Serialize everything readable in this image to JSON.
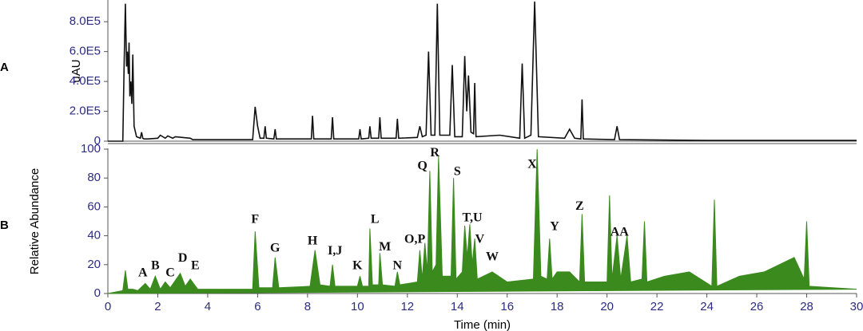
{
  "chart_data": [
    {
      "type": "line",
      "panel_label": "A",
      "y_label": "uAU",
      "color": "#111111",
      "xlim": [
        0,
        30
      ],
      "ylim": [
        0,
        940000
      ],
      "yticks": [
        0,
        {
          "value": 200000,
          "label": "2.0E5"
        },
        {
          "value": 400000,
          "label": "4.0E5"
        },
        {
          "value": 600000,
          "label": "6.0E5"
        },
        {
          "value": 800000,
          "label": "8.0E5"
        }
      ],
      "x": [
        0,
        0.6,
        0.65,
        0.7,
        0.75,
        0.78,
        0.82,
        0.85,
        0.88,
        0.92,
        0.96,
        1.0,
        1.05,
        1.15,
        1.3,
        1.35,
        1.4,
        1.45,
        1.6,
        2.0,
        2.1,
        2.3,
        2.4,
        2.6,
        2.7,
        3.3,
        3.4,
        5.8,
        5.9,
        6.0,
        6.1,
        6.25,
        6.3,
        6.35,
        6.65,
        6.7,
        6.75,
        8.15,
        8.2,
        8.25,
        8.95,
        9.0,
        9.05,
        10.05,
        10.1,
        10.15,
        10.45,
        10.5,
        10.55,
        10.85,
        10.9,
        10.95,
        11.55,
        11.6,
        11.65,
        12.4,
        12.5,
        12.6,
        12.75,
        12.85,
        12.95,
        13.1,
        13.2,
        13.3,
        13.7,
        13.8,
        13.9,
        14.2,
        14.3,
        14.38,
        14.45,
        14.55,
        14.65,
        14.7,
        14.75,
        15.7,
        16.5,
        16.6,
        16.7,
        16.95,
        17.1,
        17.25,
        18.3,
        18.5,
        18.7,
        18.95,
        19.0,
        19.05,
        20.3,
        20.4,
        20.5,
        24.0,
        30.0
      ],
      "values": [
        0,
        0,
        500000,
        920000,
        500000,
        600000,
        450000,
        660000,
        300000,
        400000,
        250000,
        580000,
        100000,
        30000,
        20000,
        60000,
        20000,
        15000,
        15000,
        20000,
        40000,
        20000,
        35000,
        20000,
        30000,
        20000,
        10000,
        10000,
        230000,
        100000,
        20000,
        20000,
        100000,
        20000,
        15000,
        80000,
        15000,
        15000,
        170000,
        15000,
        15000,
        160000,
        15000,
        15000,
        80000,
        15000,
        20000,
        100000,
        20000,
        20000,
        160000,
        20000,
        20000,
        150000,
        20000,
        25000,
        100000,
        30000,
        40000,
        600000,
        40000,
        40000,
        920000,
        40000,
        40000,
        510000,
        30000,
        30000,
        570000,
        200000,
        440000,
        60000,
        50000,
        390000,
        30000,
        40000,
        20000,
        520000,
        20000,
        40000,
        935000,
        30000,
        20000,
        80000,
        20000,
        15000,
        280000,
        15000,
        10000,
        100000,
        10000,
        5000,
        5000
      ]
    },
    {
      "type": "area",
      "panel_label": "B",
      "y_label": "Relative Abundance",
      "x_label": "Time (min)",
      "color": "#3b8a1e",
      "xlim": [
        0,
        30
      ],
      "ylim": [
        0,
        100
      ],
      "xticks": [
        0,
        2,
        4,
        6,
        8,
        10,
        12,
        14,
        16,
        18,
        20,
        22,
        24,
        26,
        28,
        30
      ],
      "yticks": [
        0,
        20,
        40,
        60,
        80,
        100
      ],
      "x": [
        0,
        0.6,
        0.7,
        0.8,
        1.0,
        1.2,
        1.5,
        1.7,
        1.9,
        2.1,
        2.3,
        2.5,
        2.9,
        3.1,
        3.3,
        3.6,
        5.8,
        5.9,
        6.05,
        6.6,
        6.7,
        6.85,
        8.1,
        8.3,
        8.5,
        8.9,
        9.0,
        9.1,
        10.0,
        10.1,
        10.2,
        10.45,
        10.5,
        10.6,
        10.85,
        10.9,
        11.0,
        11.5,
        11.6,
        11.7,
        12.4,
        12.5,
        12.6,
        12.7,
        12.8,
        12.9,
        13.0,
        13.15,
        13.25,
        13.4,
        13.75,
        13.85,
        13.95,
        14.2,
        14.3,
        14.4,
        14.5,
        14.6,
        14.7,
        14.8,
        15.4,
        16.0,
        17.05,
        17.2,
        17.35,
        17.6,
        17.7,
        17.8,
        18.0,
        18.5,
        18.9,
        19.0,
        19.1,
        20.0,
        20.1,
        20.2,
        20.4,
        20.55,
        20.8,
        20.95,
        21.4,
        21.5,
        21.6,
        22.3,
        23.3,
        24.2,
        24.3,
        24.4,
        25.3,
        26.3,
        27.5,
        27.9,
        28.0,
        28.1,
        30.0
      ],
      "values": [
        0,
        2,
        16,
        3,
        3,
        2,
        7,
        3,
        12,
        3,
        8,
        4,
        14,
        5,
        10,
        3,
        3,
        43,
        4,
        4,
        25,
        4,
        5,
        30,
        6,
        5,
        20,
        5,
        5,
        12,
        5,
        5,
        45,
        6,
        6,
        28,
        6,
        5,
        15,
        6,
        8,
        30,
        10,
        35,
        15,
        85,
        15,
        20,
        95,
        12,
        12,
        80,
        10,
        15,
        47,
        25,
        48,
        20,
        38,
        10,
        15,
        8,
        10,
        100,
        12,
        10,
        38,
        10,
        15,
        15,
        8,
        55,
        8,
        8,
        68,
        10,
        40,
        10,
        40,
        8,
        10,
        50,
        8,
        12,
        15,
        5,
        65,
        5,
        12,
        15,
        25,
        10,
        50,
        5,
        3
      ],
      "annotations": [
        {
          "label": "A",
          "x": 1.4,
          "y": 14
        },
        {
          "label": "B",
          "x": 1.9,
          "y": 19
        },
        {
          "label": "C",
          "x": 2.5,
          "y": 14
        },
        {
          "label": "D",
          "x": 3.0,
          "y": 24
        },
        {
          "label": "E",
          "x": 3.5,
          "y": 19
        },
        {
          "label": "F",
          "x": 5.9,
          "y": 51
        },
        {
          "label": "G",
          "x": 6.7,
          "y": 31
        },
        {
          "label": "H",
          "x": 8.2,
          "y": 36
        },
        {
          "label": "I,J",
          "x": 9.1,
          "y": 29
        },
        {
          "label": "K",
          "x": 10.0,
          "y": 19
        },
        {
          "label": "L",
          "x": 10.7,
          "y": 51
        },
        {
          "label": "M",
          "x": 11.1,
          "y": 32
        },
        {
          "label": "N",
          "x": 11.6,
          "y": 19
        },
        {
          "label": "O,P",
          "x": 12.3,
          "y": 37
        },
        {
          "label": "Q",
          "x": 12.6,
          "y": 88
        },
        {
          "label": "R",
          "x": 13.1,
          "y": 97
        },
        {
          "label": "S",
          "x": 14.0,
          "y": 84
        },
        {
          "label": "T,U",
          "x": 14.6,
          "y": 52
        },
        {
          "label": "V",
          "x": 14.9,
          "y": 37
        },
        {
          "label": "W",
          "x": 15.4,
          "y": 25
        },
        {
          "label": "X",
          "x": 17.0,
          "y": 89
        },
        {
          "label": "Y",
          "x": 17.9,
          "y": 46
        },
        {
          "label": "Z",
          "x": 18.9,
          "y": 60
        },
        {
          "label": "AA",
          "x": 20.5,
          "y": 42
        }
      ]
    }
  ]
}
